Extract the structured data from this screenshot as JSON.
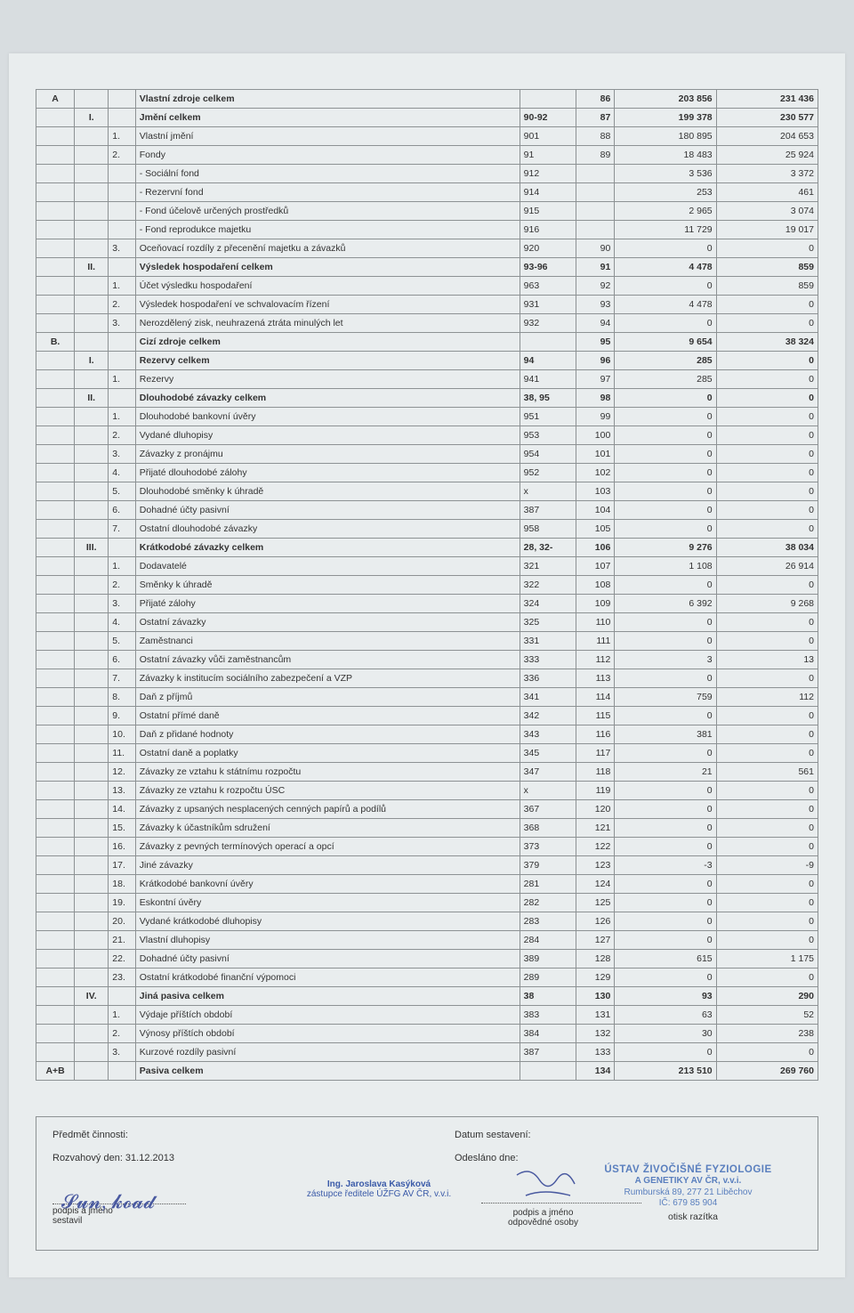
{
  "table": {
    "rows": [
      {
        "c1": "A",
        "c2": "",
        "c3": "",
        "c4": "Vlastní zdroje celkem",
        "c5": "",
        "c6": "86",
        "c7": "203 856",
        "c8": "231 436",
        "bold": true
      },
      {
        "c1": "",
        "c2": "I.",
        "c3": "",
        "c4": "Jmění celkem",
        "c5": "90-92",
        "c6": "87",
        "c7": "199 378",
        "c8": "230 577",
        "bold": true
      },
      {
        "c1": "",
        "c2": "",
        "c3": "1.",
        "c4": "Vlastní jmění",
        "c5": "901",
        "c6": "88",
        "c7": "180 895",
        "c8": "204 653"
      },
      {
        "c1": "",
        "c2": "",
        "c3": "2.",
        "c4": "Fondy",
        "c5": "91",
        "c6": "89",
        "c7": "18 483",
        "c8": "25 924"
      },
      {
        "c1": "",
        "c2": "",
        "c3": "",
        "c4": "  - Sociální fond",
        "c5": "912",
        "c6": "",
        "c7": "3 536",
        "c8": "3 372"
      },
      {
        "c1": "",
        "c2": "",
        "c3": "",
        "c4": "  - Rezervní fond",
        "c5": "914",
        "c6": "",
        "c7": "253",
        "c8": "461"
      },
      {
        "c1": "",
        "c2": "",
        "c3": "",
        "c4": "  - Fond účelově určených prostředků",
        "c5": "915",
        "c6": "",
        "c7": "2 965",
        "c8": "3 074"
      },
      {
        "c1": "",
        "c2": "",
        "c3": "",
        "c4": "  - Fond reprodukce majetku",
        "c5": "916",
        "c6": "",
        "c7": "11 729",
        "c8": "19 017"
      },
      {
        "c1": "",
        "c2": "",
        "c3": "3.",
        "c4": "Oceňovací rozdíly z přecenění majetku a závazků",
        "c5": "920",
        "c6": "90",
        "c7": "0",
        "c8": "0"
      },
      {
        "c1": "",
        "c2": "II.",
        "c3": "",
        "c4": "Výsledek hospodaření celkem",
        "c5": "93-96",
        "c6": "91",
        "c7": "4 478",
        "c8": "859",
        "bold": true
      },
      {
        "c1": "",
        "c2": "",
        "c3": "1.",
        "c4": "Účet výsledku hospodaření",
        "c5": "963",
        "c6": "92",
        "c7": "0",
        "c8": "859"
      },
      {
        "c1": "",
        "c2": "",
        "c3": "2.",
        "c4": "Výsledek hospodaření ve schvalovacím řízení",
        "c5": "931",
        "c6": "93",
        "c7": "4 478",
        "c8": "0"
      },
      {
        "c1": "",
        "c2": "",
        "c3": "3.",
        "c4": "Nerozdělený zisk, neuhrazená ztráta minulých let",
        "c5": "932",
        "c6": "94",
        "c7": "0",
        "c8": "0"
      },
      {
        "c1": "B.",
        "c2": "",
        "c3": "",
        "c4": "Cizí zdroje celkem",
        "c5": "",
        "c6": "95",
        "c7": "9 654",
        "c8": "38 324",
        "bold": true
      },
      {
        "c1": "",
        "c2": "I.",
        "c3": "",
        "c4": "Rezervy celkem",
        "c5": "94",
        "c6": "96",
        "c7": "285",
        "c8": "0",
        "bold": true
      },
      {
        "c1": "",
        "c2": "",
        "c3": "1.",
        "c4": "Rezervy",
        "c5": "941",
        "c6": "97",
        "c7": "285",
        "c8": "0"
      },
      {
        "c1": "",
        "c2": "II.",
        "c3": "",
        "c4": "Dlouhodobé závazky celkem",
        "c5": "38, 95",
        "c6": "98",
        "c7": "0",
        "c8": "0",
        "bold": true
      },
      {
        "c1": "",
        "c2": "",
        "c3": "1.",
        "c4": "Dlouhodobé bankovní úvěry",
        "c5": "951",
        "c6": "99",
        "c7": "0",
        "c8": "0"
      },
      {
        "c1": "",
        "c2": "",
        "c3": "2.",
        "c4": "Vydané dluhopisy",
        "c5": "953",
        "c6": "100",
        "c7": "0",
        "c8": "0"
      },
      {
        "c1": "",
        "c2": "",
        "c3": "3.",
        "c4": "Závazky z pronájmu",
        "c5": "954",
        "c6": "101",
        "c7": "0",
        "c8": "0"
      },
      {
        "c1": "",
        "c2": "",
        "c3": "4.",
        "c4": "Přijaté dlouhodobé zálohy",
        "c5": "952",
        "c6": "102",
        "c7": "0",
        "c8": "0"
      },
      {
        "c1": "",
        "c2": "",
        "c3": "5.",
        "c4": "Dlouhodobé směnky k úhradě",
        "c5": "x",
        "c6": "103",
        "c7": "0",
        "c8": "0"
      },
      {
        "c1": "",
        "c2": "",
        "c3": "6.",
        "c4": "Dohadné účty pasivní",
        "c5": "387",
        "c6": "104",
        "c7": "0",
        "c8": "0"
      },
      {
        "c1": "",
        "c2": "",
        "c3": "7.",
        "c4": "Ostatní dlouhodobé závazky",
        "c5": "958",
        "c6": "105",
        "c7": "0",
        "c8": "0"
      },
      {
        "c1": "",
        "c2": "III.",
        "c3": "",
        "c4": "Krátkodobé závazky celkem",
        "c5": "28, 32-",
        "c6": "106",
        "c7": "9 276",
        "c8": "38 034",
        "bold": true
      },
      {
        "c1": "",
        "c2": "",
        "c3": "1.",
        "c4": "Dodavatelé",
        "c5": "321",
        "c6": "107",
        "c7": "1 108",
        "c8": "26 914"
      },
      {
        "c1": "",
        "c2": "",
        "c3": "2.",
        "c4": "Směnky k úhradě",
        "c5": "322",
        "c6": "108",
        "c7": "0",
        "c8": "0"
      },
      {
        "c1": "",
        "c2": "",
        "c3": "3.",
        "c4": "Přijaté zálohy",
        "c5": "324",
        "c6": "109",
        "c7": "6 392",
        "c8": "9 268"
      },
      {
        "c1": "",
        "c2": "",
        "c3": "4.",
        "c4": "Ostatní závazky",
        "c5": "325",
        "c6": "110",
        "c7": "0",
        "c8": "0"
      },
      {
        "c1": "",
        "c2": "",
        "c3": "5.",
        "c4": "Zaměstnanci",
        "c5": "331",
        "c6": "111",
        "c7": "0",
        "c8": "0"
      },
      {
        "c1": "",
        "c2": "",
        "c3": "6.",
        "c4": "Ostatní závazky vůči zaměstnancům",
        "c5": "333",
        "c6": "112",
        "c7": "3",
        "c8": "13"
      },
      {
        "c1": "",
        "c2": "",
        "c3": "7.",
        "c4": "Závazky k institucím sociálního zabezpečení a VZP",
        "c5": "336",
        "c6": "113",
        "c7": "0",
        "c8": "0"
      },
      {
        "c1": "",
        "c2": "",
        "c3": "8.",
        "c4": "Daň z příjmů",
        "c5": "341",
        "c6": "114",
        "c7": "759",
        "c8": "112"
      },
      {
        "c1": "",
        "c2": "",
        "c3": "9.",
        "c4": "Ostatní přímé daně",
        "c5": "342",
        "c6": "115",
        "c7": "0",
        "c8": "0"
      },
      {
        "c1": "",
        "c2": "",
        "c3": "10.",
        "c4": "Daň z přidané hodnoty",
        "c5": "343",
        "c6": "116",
        "c7": "381",
        "c8": "0"
      },
      {
        "c1": "",
        "c2": "",
        "c3": "11.",
        "c4": "Ostatní daně a poplatky",
        "c5": "345",
        "c6": "117",
        "c7": "0",
        "c8": "0"
      },
      {
        "c1": "",
        "c2": "",
        "c3": "12.",
        "c4": "Závazky ze vztahu k státnímu rozpočtu",
        "c5": "347",
        "c6": "118",
        "c7": "21",
        "c8": "561"
      },
      {
        "c1": "",
        "c2": "",
        "c3": "13.",
        "c4": "Závazky ze vztahu k rozpočtu ÚSC",
        "c5": "x",
        "c6": "119",
        "c7": "0",
        "c8": "0"
      },
      {
        "c1": "",
        "c2": "",
        "c3": "14.",
        "c4": "Závazky z upsaných nesplacených cenných papírů a podílů",
        "c5": "367",
        "c6": "120",
        "c7": "0",
        "c8": "0"
      },
      {
        "c1": "",
        "c2": "",
        "c3": "15.",
        "c4": "Závazky k účastníkům sdružení",
        "c5": "368",
        "c6": "121",
        "c7": "0",
        "c8": "0"
      },
      {
        "c1": "",
        "c2": "",
        "c3": "16.",
        "c4": "Závazky z pevných termínových operací a opcí",
        "c5": "373",
        "c6": "122",
        "c7": "0",
        "c8": "0"
      },
      {
        "c1": "",
        "c2": "",
        "c3": "17.",
        "c4": "Jiné závazky",
        "c5": "379",
        "c6": "123",
        "c7": "-3",
        "c8": "-9"
      },
      {
        "c1": "",
        "c2": "",
        "c3": "18.",
        "c4": "Krátkodobé bankovní úvěry",
        "c5": "281",
        "c6": "124",
        "c7": "0",
        "c8": "0"
      },
      {
        "c1": "",
        "c2": "",
        "c3": "19.",
        "c4": "Eskontní úvěry",
        "c5": "282",
        "c6": "125",
        "c7": "0",
        "c8": "0"
      },
      {
        "c1": "",
        "c2": "",
        "c3": "20.",
        "c4": "Vydané krátkodobé dluhopisy",
        "c5": "283",
        "c6": "126",
        "c7": "0",
        "c8": "0"
      },
      {
        "c1": "",
        "c2": "",
        "c3": "21.",
        "c4": "Vlastní dluhopisy",
        "c5": "284",
        "c6": "127",
        "c7": "0",
        "c8": "0"
      },
      {
        "c1": "",
        "c2": "",
        "c3": "22.",
        "c4": "Dohadné účty pasivní",
        "c5": "389",
        "c6": "128",
        "c7": "615",
        "c8": "1 175"
      },
      {
        "c1": "",
        "c2": "",
        "c3": "23.",
        "c4": "Ostatní krátkodobé finanční výpomoci",
        "c5": "289",
        "c6": "129",
        "c7": "0",
        "c8": "0"
      },
      {
        "c1": "",
        "c2": "IV.",
        "c3": "",
        "c4": "Jiná pasiva celkem",
        "c5": "38",
        "c6": "130",
        "c7": "93",
        "c8": "290",
        "bold": true
      },
      {
        "c1": "",
        "c2": "",
        "c3": "1.",
        "c4": "Výdaje příštích období",
        "c5": "383",
        "c6": "131",
        "c7": "63",
        "c8": "52"
      },
      {
        "c1": "",
        "c2": "",
        "c3": "2.",
        "c4": "Výnosy příštích období",
        "c5": "384",
        "c6": "132",
        "c7": "30",
        "c8": "238"
      },
      {
        "c1": "",
        "c2": "",
        "c3": "3.",
        "c4": "Kurzové rozdíly pasivní",
        "c5": "387",
        "c6": "133",
        "c7": "0",
        "c8": "0"
      },
      {
        "c1": "A+B",
        "c2": "",
        "c3": "",
        "c4": "Pasiva celkem",
        "c5": "",
        "c6": "134",
        "c7": "213 510",
        "c8": "269 760",
        "bold": true
      }
    ]
  },
  "footer": {
    "subject_label": "Předmět činnosti:",
    "balance_day_label": "Rozvahový den:  31.12.2013",
    "sig1_label": "podpis a jméno\nsestavil",
    "mid_name": "Ing. Jaroslava Kasýková",
    "mid_role": "zástupce ředitele ÚŽFG AV ČR, v.v.i.",
    "date_label": "Datum sestavení:",
    "sent_label": "Odesláno dne:",
    "sig2_label": "podpis a jméno\nodpovědné osoby",
    "stamp_label": "otisk razítka",
    "stamp_line1": "ÚSTAV ŽIVOČIŠNÉ FYZIOLOGIE",
    "stamp_line2": "A GENETIKY AV ČR, v.v.i.",
    "stamp_line3": "Rumburská 89,  277 21  Liběchov",
    "stamp_line4": "IČ: 679 85 904"
  }
}
